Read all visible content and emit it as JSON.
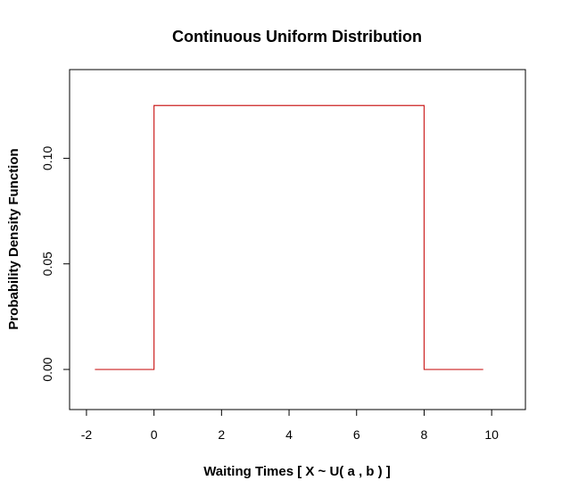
{
  "chart_data": {
    "type": "line",
    "title": "Continuous Uniform Distribution",
    "xlabel": "Waiting Times [ X ~ U( a , b  ) ]",
    "ylabel": "Probability Density Function",
    "xlim": [
      -2.5,
      11
    ],
    "ylim": [
      -0.019,
      0.142
    ],
    "x_ticks": [
      -2,
      0,
      2,
      4,
      6,
      8,
      10
    ],
    "x_tick_labels": [
      "-2",
      "0",
      "2",
      "4",
      "6",
      "8",
      "10"
    ],
    "y_ticks": [
      0.0,
      0.05,
      0.1
    ],
    "y_tick_labels": [
      "0.00",
      "0.05",
      "0.10"
    ],
    "grid": false,
    "series": [
      {
        "color": "#cc2222",
        "x": [
          -1.75,
          0,
          0,
          8,
          8,
          9.75
        ],
        "y": [
          0,
          0,
          0.125,
          0.125,
          0,
          0
        ]
      }
    ]
  }
}
